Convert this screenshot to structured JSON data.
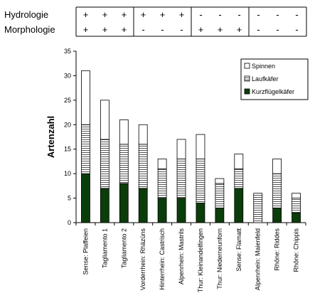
{
  "header_table": {
    "rows": [
      {
        "label": "Hydrologie",
        "signs": [
          "+",
          "+",
          "+",
          "+",
          "+",
          "+",
          "-",
          "-",
          "-",
          "-",
          "-",
          "-"
        ]
      },
      {
        "label": "Morphologie",
        "signs": [
          "+",
          "+",
          "+",
          "-",
          "-",
          "-",
          "+",
          "+",
          "+",
          "-",
          "-",
          "-"
        ]
      }
    ]
  },
  "colors": {
    "kurzfluegel": "#0b3d0b",
    "lauf_lines": "#555555",
    "spinnen": "#ffffff",
    "axis": "#000000"
  },
  "chart_data": {
    "type": "bar",
    "stacked": true,
    "categories": [
      "Sense: Plaffeien",
      "Tagliamento 1",
      "Tagliamento 2",
      "Vorderrhein: Rhäzüns",
      "Hinterrhein: Castrisch",
      "Alpenrhein: Mastrils",
      "Thur: Kleinandelfingen",
      "Thur: Niederneunforn",
      "Sense: Flamatt",
      "Alpenrhein: Maienfeld",
      "Rhône: Riddes",
      "Rhône: Chippis"
    ],
    "series": [
      {
        "name": "Kurzflügelkäfer",
        "values": [
          10,
          7,
          8,
          7,
          5,
          5,
          4,
          3,
          7,
          0,
          3,
          2
        ]
      },
      {
        "name": "Laufkäfer",
        "values": [
          10,
          10,
          8,
          9,
          6,
          8,
          9,
          5,
          4,
          6,
          7,
          3
        ]
      },
      {
        "name": "Spinnen",
        "values": [
          11,
          8,
          5,
          4,
          2,
          4,
          5,
          1,
          3,
          0,
          3,
          1
        ]
      }
    ],
    "ylabel": "Artenzahl",
    "ylim": [
      0,
      35
    ],
    "yticks": [
      "0",
      "5",
      "10",
      "15",
      "20",
      "25",
      "30",
      "35"
    ],
    "legend_position": "top-right"
  }
}
